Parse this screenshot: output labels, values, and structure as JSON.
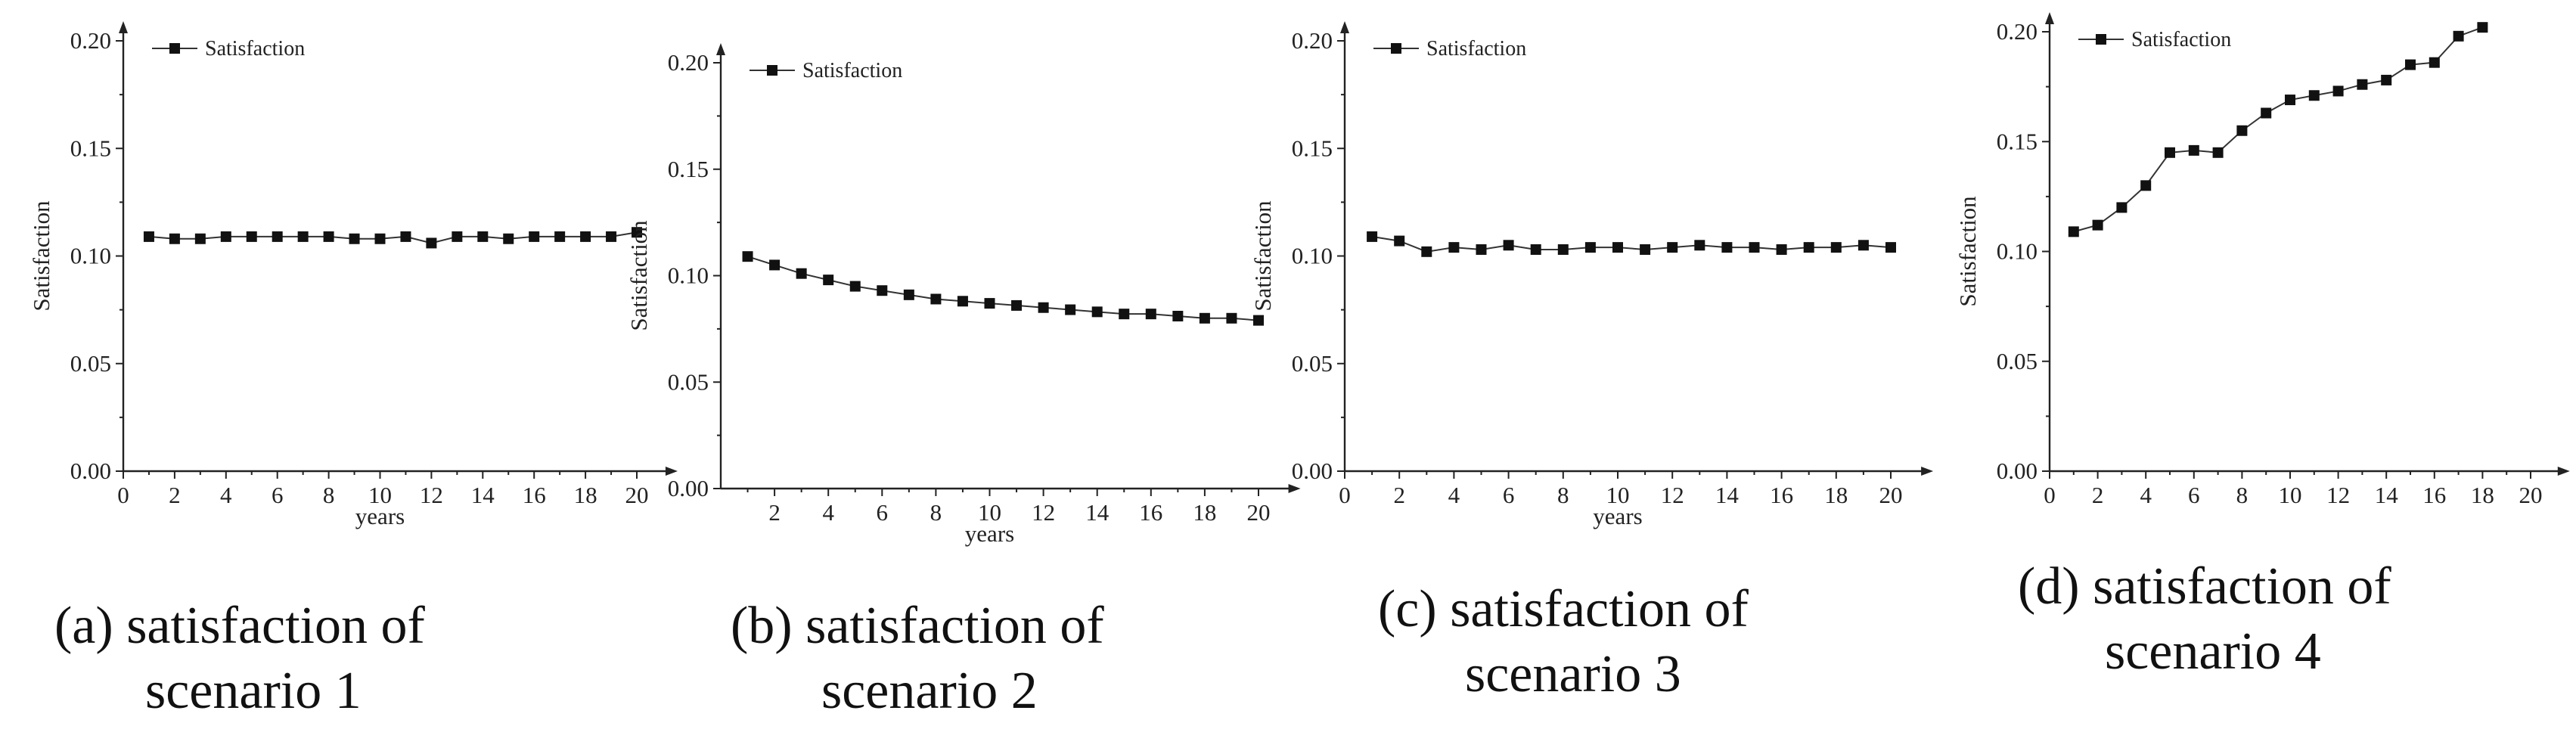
{
  "chart_data": [
    {
      "id": "a",
      "type": "line",
      "title": "",
      "xlabel": "years",
      "ylabel": "Satisfaction",
      "xlim": [
        0,
        21
      ],
      "ylim": [
        0,
        0.2
      ],
      "xticks": [
        "0",
        "2",
        "4",
        "6",
        "8",
        "10",
        "12",
        "14",
        "16",
        "18",
        "20"
      ],
      "yticks": [
        "0.00",
        "0.05",
        "0.10",
        "0.15",
        "0.20"
      ],
      "legend": "top-left",
      "series": [
        {
          "name": "Satisfaction",
          "x": [
            1,
            2,
            3,
            4,
            5,
            6,
            7,
            8,
            9,
            10,
            11,
            12,
            13,
            14,
            15,
            16,
            17,
            18,
            19,
            20
          ],
          "values": [
            0.109,
            0.108,
            0.108,
            0.109,
            0.109,
            0.109,
            0.109,
            0.109,
            0.108,
            0.108,
            0.109,
            0.106,
            0.109,
            0.109,
            0.108,
            0.109,
            0.109,
            0.109,
            0.109,
            0.111
          ]
        }
      ],
      "caption": {
        "line1": "(a) satisfaction of",
        "line2": "scenario 1"
      }
    },
    {
      "id": "b",
      "type": "line",
      "title": "",
      "xlabel": "years",
      "ylabel": "Satisfaction",
      "xlim": [
        0,
        21
      ],
      "ylim": [
        0,
        0.2
      ],
      "xticks": [
        "2",
        "4",
        "6",
        "8",
        "10",
        "12",
        "14",
        "16",
        "18",
        "20"
      ],
      "yticks": [
        "0.00",
        "0.05",
        "0.10",
        "0.15",
        "0.20"
      ],
      "legend": "top-left",
      "series": [
        {
          "name": "Satisfaction",
          "x": [
            1,
            2,
            3,
            4,
            5,
            6,
            7,
            8,
            9,
            10,
            11,
            12,
            13,
            14,
            15,
            16,
            17,
            18,
            19,
            20
          ],
          "values": [
            0.109,
            0.105,
            0.101,
            0.098,
            0.095,
            0.093,
            0.091,
            0.089,
            0.088,
            0.087,
            0.086,
            0.085,
            0.084,
            0.083,
            0.082,
            0.082,
            0.081,
            0.08,
            0.08,
            0.079
          ]
        }
      ],
      "caption": {
        "line1": "(b) satisfaction of",
        "line2": "scenario 2"
      }
    },
    {
      "id": "c",
      "type": "line",
      "title": "",
      "xlabel": "years",
      "ylabel": "Satisfaction",
      "xlim": [
        0,
        21
      ],
      "ylim": [
        0,
        0.2
      ],
      "xticks": [
        "0",
        "2",
        "4",
        "6",
        "8",
        "10",
        "12",
        "14",
        "16",
        "18",
        "20"
      ],
      "yticks": [
        "0.00",
        "0.05",
        "0.10",
        "0.15",
        "0.20"
      ],
      "legend": "top-left",
      "series": [
        {
          "name": "Satisfaction",
          "x": [
            1,
            2,
            3,
            4,
            5,
            6,
            7,
            8,
            9,
            10,
            11,
            12,
            13,
            14,
            15,
            16,
            17,
            18,
            19,
            20
          ],
          "values": [
            0.109,
            0.107,
            0.102,
            0.104,
            0.103,
            0.105,
            0.103,
            0.103,
            0.104,
            0.104,
            0.103,
            0.104,
            0.105,
            0.104,
            0.104,
            0.103,
            0.104,
            0.104,
            0.105,
            0.104
          ]
        }
      ],
      "caption": {
        "line1": "(c) satisfaction of",
        "line2": "scenario 3"
      }
    },
    {
      "id": "d",
      "type": "line",
      "title": "",
      "xlabel": "",
      "ylabel": "Satisfaction",
      "xlim": [
        0,
        21
      ],
      "ylim": [
        0,
        0.2
      ],
      "xticks": [
        "0",
        "2",
        "4",
        "6",
        "8",
        "10",
        "12",
        "14",
        "16",
        "18",
        "20"
      ],
      "yticks": [
        "0.00",
        "0.05",
        "0.10",
        "0.15",
        "0.20"
      ],
      "legend": "top-left",
      "series": [
        {
          "name": "Satisfaction",
          "x": [
            1,
            2,
            3,
            4,
            5,
            6,
            7,
            8,
            9,
            10,
            11,
            12,
            13,
            14,
            15,
            16,
            17,
            18
          ],
          "values": [
            0.109,
            0.112,
            0.12,
            0.13,
            0.145,
            0.146,
            0.145,
            0.155,
            0.163,
            0.169,
            0.171,
            0.173,
            0.176,
            0.178,
            0.185,
            0.186,
            0.198,
            0.202
          ]
        }
      ],
      "caption": {
        "line1": "(d) satisfaction of",
        "line2": "scenario 4"
      }
    }
  ]
}
